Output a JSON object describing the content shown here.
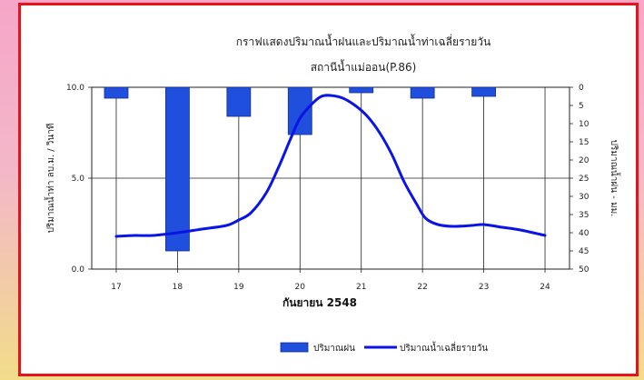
{
  "chart_data": {
    "type": "bar+line",
    "title": "กราฟแสดงปริมาณน้ำฝนและปริมาณน้ำท่าเฉลี่ยรายวัน",
    "subtitle": "สถานีน้ำแม่ออน(P.86)",
    "xlabel": "กันยายน 2548",
    "ylabel_left": "ปริมาณน้ำท่า ลบ.ม. / วินาที",
    "ylabel_right": "ปริมาณน้ำฝน - มม.",
    "x_ticks": [
      "17",
      "18",
      "19",
      "20",
      "21",
      "22",
      "23",
      "24"
    ],
    "y_left_ticks": [
      "10.0",
      "5.0",
      "0.0"
    ],
    "y_right_ticks": [
      "0",
      "5",
      "10",
      "15",
      "20",
      "25",
      "30",
      "35",
      "40",
      "45",
      "50"
    ],
    "ylim_left": [
      0,
      10
    ],
    "ylim_right_inverted": [
      0,
      50
    ],
    "grid": "horizontal at 5.0, vertical at each day",
    "series": [
      {
        "name": "ปริมาณฝน",
        "kind": "bar",
        "axis": "right",
        "color": "#1f4fdc",
        "x": [
          17,
          18,
          19,
          20,
          21,
          22,
          23
        ],
        "values": [
          3,
          45,
          8,
          13,
          1.5,
          3,
          2.5
        ]
      },
      {
        "name": "ปริมาณน้ำเฉลี่ยรายวัน",
        "kind": "line",
        "axis": "left",
        "color": "#0a14e6",
        "x": [
          17.0,
          17.3,
          17.6,
          18.0,
          18.4,
          18.8,
          19.0,
          19.2,
          19.45,
          19.65,
          19.85,
          20.0,
          20.2,
          20.35,
          20.5,
          20.7,
          20.9,
          21.1,
          21.3,
          21.5,
          21.7,
          21.9,
          22.05,
          22.25,
          22.5,
          22.8,
          23.0,
          23.3,
          23.6,
          24.0
        ],
        "values": [
          1.8,
          1.85,
          1.85,
          2.0,
          2.2,
          2.4,
          2.7,
          3.1,
          4.2,
          5.6,
          7.2,
          8.3,
          9.1,
          9.5,
          9.55,
          9.4,
          9.0,
          8.4,
          7.5,
          6.3,
          4.8,
          3.6,
          2.8,
          2.45,
          2.35,
          2.4,
          2.45,
          2.3,
          2.15,
          1.85
        ]
      }
    ],
    "legend": {
      "placement": "bottom-center",
      "bar_label": "ปริมาณฝน",
      "line_label": "ปริมาณน้ำเฉลี่ยรายวัน"
    }
  }
}
